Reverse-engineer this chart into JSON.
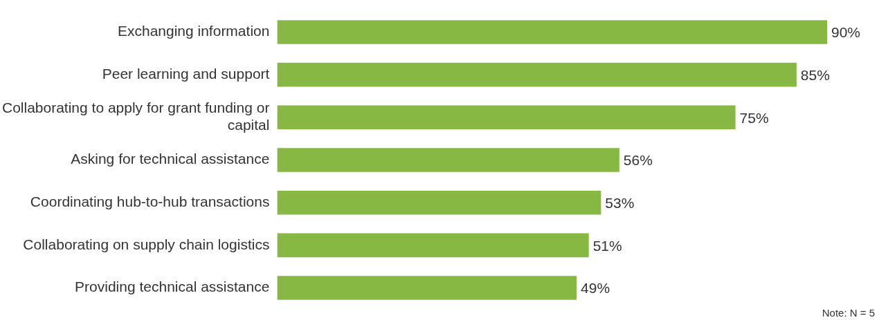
{
  "chart_data": {
    "type": "bar",
    "orientation": "horizontal",
    "categories": [
      "Exchanging information",
      "Peer learning and support",
      "Collaborating to apply for grant funding or capital",
      "Asking for technical assistance",
      "Coordinating hub-to-hub transactions",
      "Collaborating on supply chain logistics",
      "Providing technical assistance"
    ],
    "values": [
      90,
      85,
      75,
      56,
      53,
      51,
      49
    ],
    "color": "#88b844",
    "value_labels": [
      "90%",
      "85%",
      "75%",
      "56%",
      "53%",
      "51%",
      "49%"
    ],
    "tick_labels": "y",
    "legend": false,
    "annotations": [
      "Note: N = 5"
    ]
  }
}
